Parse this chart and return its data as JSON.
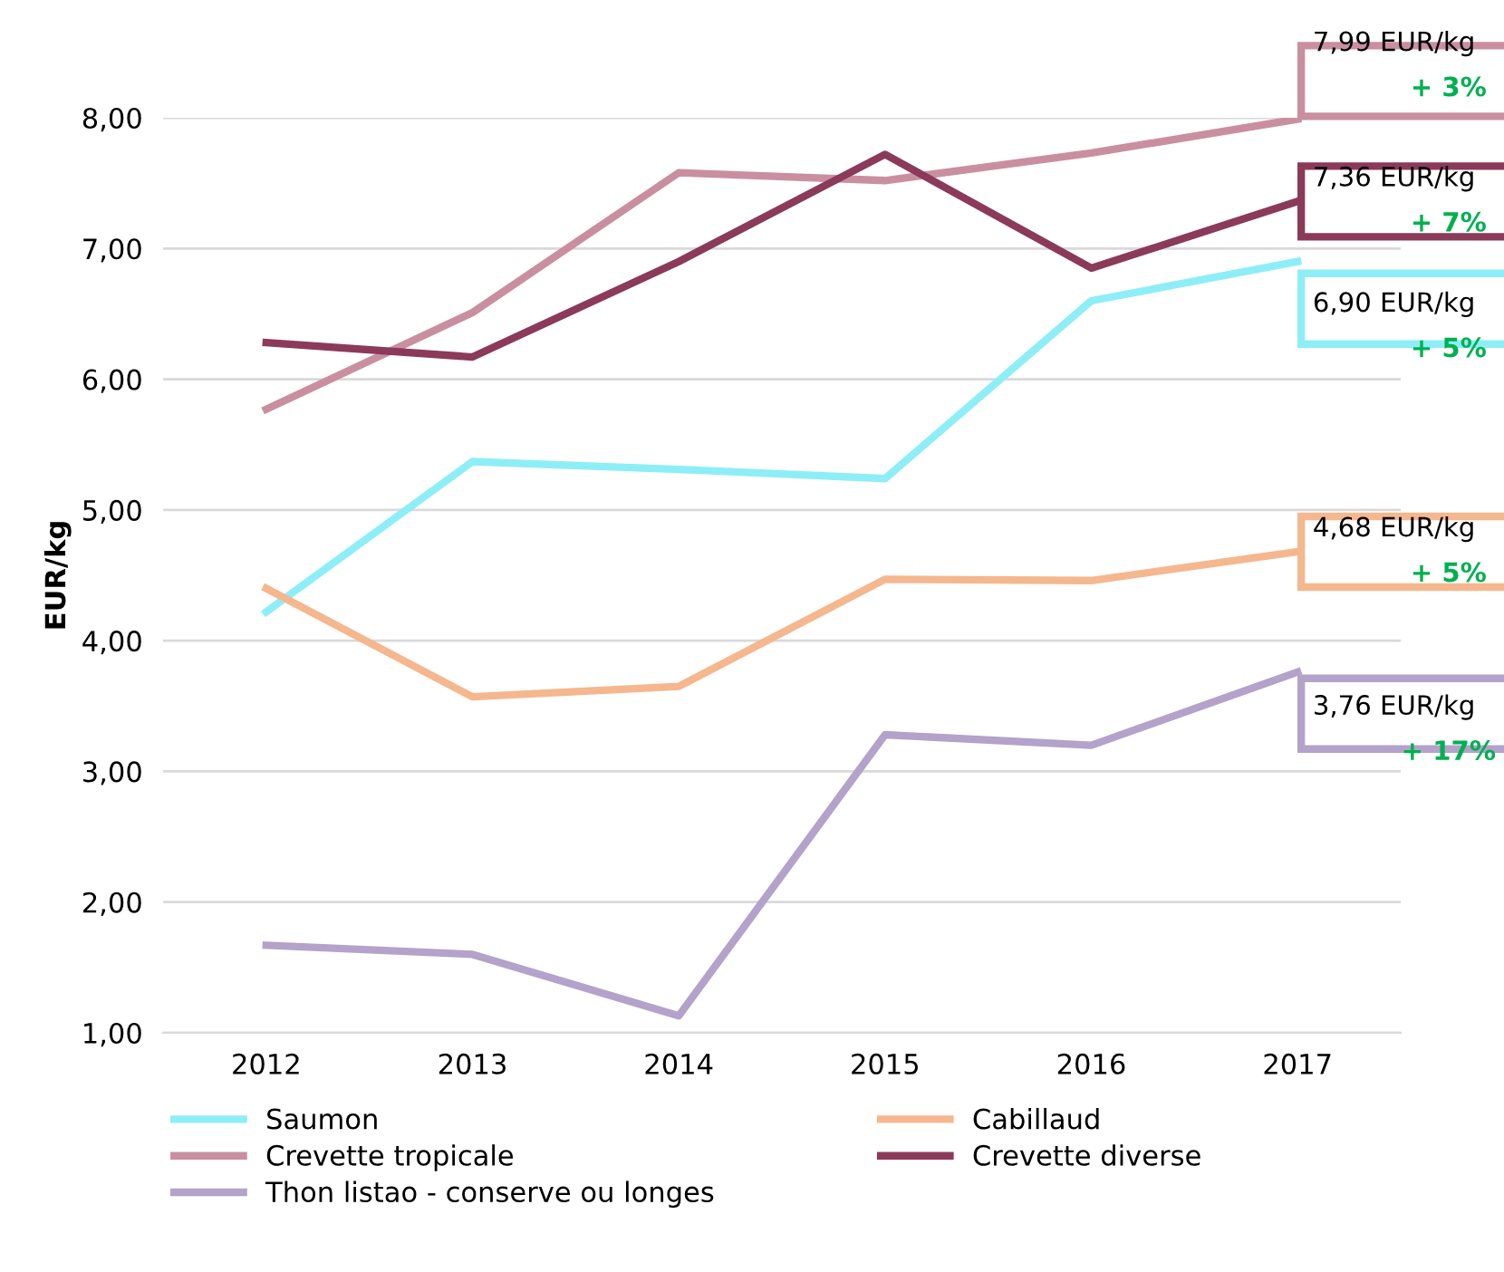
{
  "chart_data": {
    "type": "line",
    "ylabel": "EUR/kg",
    "categories": [
      "2012",
      "2013",
      "2014",
      "2015",
      "2016",
      "2017"
    ],
    "series": [
      {
        "name": "Saumon",
        "color": "#8eeef7",
        "values": [
          4.22,
          5.37,
          5.31,
          5.24,
          6.6,
          6.9
        ]
      },
      {
        "name": "Cabillaud",
        "color": "#f5b78e",
        "values": [
          4.4,
          3.57,
          3.65,
          4.47,
          4.46,
          4.68
        ]
      },
      {
        "name": "Crevette tropicale",
        "color": "#c98fa0",
        "values": [
          5.77,
          6.51,
          7.58,
          7.52,
          7.73,
          7.99
        ]
      },
      {
        "name": "Crevette diverse",
        "color": "#8b3a5a",
        "values": [
          6.28,
          6.17,
          6.9,
          7.72,
          6.85,
          7.36
        ]
      },
      {
        "name": "Thon listao - conserve ou longes",
        "color": "#b3a2c9",
        "values": [
          1.67,
          1.6,
          1.13,
          3.28,
          3.2,
          3.76
        ]
      }
    ],
    "ylim": [
      1,
      8
    ],
    "yticks": [
      {
        "value": 1,
        "label": "1,00"
      },
      {
        "value": 2,
        "label": "2,00"
      },
      {
        "value": 3,
        "label": "3,00"
      },
      {
        "value": 4,
        "label": "4,00"
      },
      {
        "value": 5,
        "label": "5,00"
      },
      {
        "value": 6,
        "label": "6,00"
      },
      {
        "value": 7,
        "label": "7,00"
      },
      {
        "value": 8,
        "label": "8,00"
      }
    ],
    "grid": "y",
    "legend": "bottom",
    "marker": "none",
    "line_style": "solid",
    "annotations": [
      {
        "text": "6,90 EUR/kg",
        "x": "2017",
        "y": 6.9
      },
      "+ 5%",
      {
        "text": "4,68 EUR/kg",
        "x": "2017",
        "y": 4.68
      },
      "+ 5%",
      {
        "text": "7,99 EUR/kg",
        "x": "2017",
        "y": 7.99
      },
      "+ 3%",
      {
        "text": "7,36 EUR/kg",
        "x": "2017",
        "y": 7.36
      },
      "+ 7%",
      {
        "text": "3,76 EUR/kg",
        "x": "2017",
        "y": 3.76
      },
      "+ 17%"
    ]
  }
}
